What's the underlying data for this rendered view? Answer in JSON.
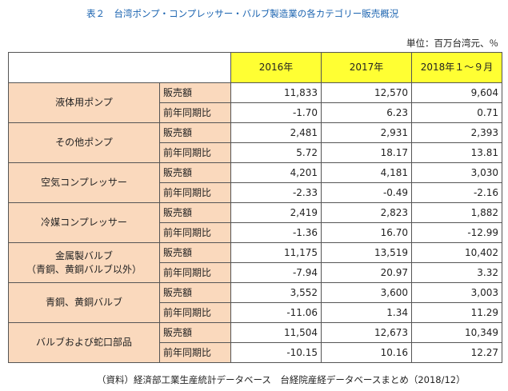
{
  "title": "表２　台湾ポンプ・コンプレッサー・バルブ製造業の各カテゴリー販売概況",
  "unit": "単位：百万台湾元、％",
  "columns": [
    "2016年",
    "2017年",
    "2018年１～９月"
  ],
  "metric_labels": {
    "sales": "販売額",
    "yoy": "前年同期比"
  },
  "rows": [
    {
      "category": [
        "液体用ポンプ"
      ],
      "sales": [
        "11,833",
        "12,570",
        "9,604"
      ],
      "yoy": [
        "-1.70",
        "6.23",
        "0.71"
      ]
    },
    {
      "category": [
        "その他ポンプ"
      ],
      "sales": [
        "2,481",
        "2,931",
        "2,393"
      ],
      "yoy": [
        "5.72",
        "18.17",
        "13.81"
      ]
    },
    {
      "category": [
        "空気コンプレッサー"
      ],
      "sales": [
        "4,201",
        "4,181",
        "3,030"
      ],
      "yoy": [
        "-2.33",
        "-0.49",
        "-2.16"
      ]
    },
    {
      "category": [
        "冷媒コンプレッサー"
      ],
      "sales": [
        "2,419",
        "2,823",
        "1,882"
      ],
      "yoy": [
        "-1.36",
        "16.70",
        "-12.99"
      ]
    },
    {
      "category": [
        "金属製バルブ",
        "（青銅、黄銅バルブ以外）"
      ],
      "sales": [
        "11,175",
        "13,519",
        "10,402"
      ],
      "yoy": [
        "-7.94",
        "20.97",
        "3.32"
      ]
    },
    {
      "category": [
        "青銅、黄銅バルブ"
      ],
      "sales": [
        "3,552",
        "3,600",
        "3,003"
      ],
      "yoy": [
        "-11.06",
        "1.34",
        "11.29"
      ]
    },
    {
      "category": [
        "バルブおよび蛇口部品"
      ],
      "sales": [
        "11,504",
        "12,673",
        "10,349"
      ],
      "yoy": [
        "-10.15",
        "10.16",
        "12.27"
      ]
    }
  ],
  "source": "（資料）経済部工業生産統計データベース　台経院産経データベースまとめ（2018/12）",
  "colors": {
    "title": "#1a63b0",
    "header_fill": "#ffff33",
    "label_fill": "#fad9bd",
    "border": "#555555"
  }
}
